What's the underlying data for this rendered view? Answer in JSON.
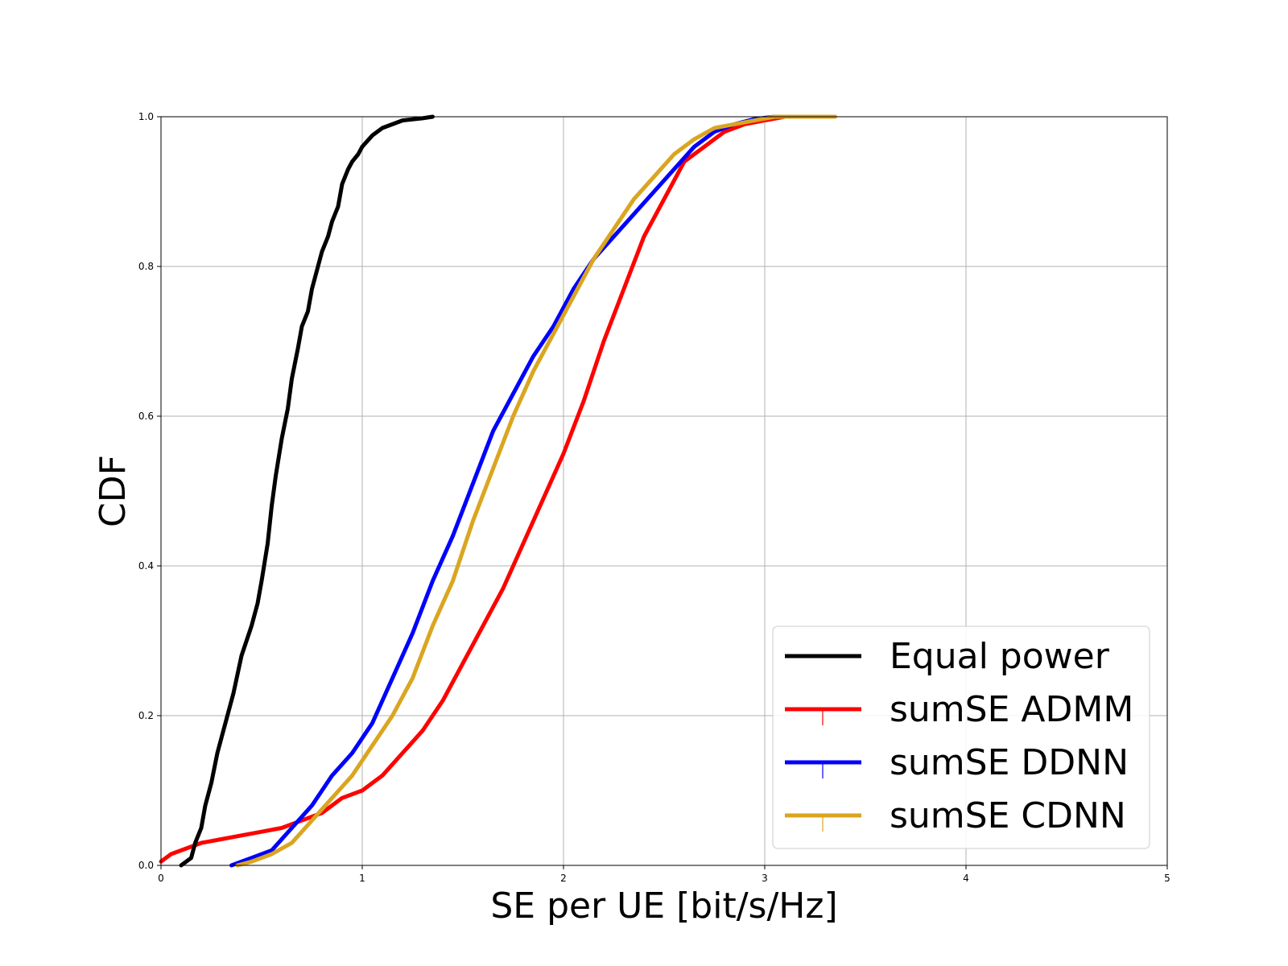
{
  "chart_data": {
    "type": "line",
    "title": "",
    "xlabel": "SE per UE [bit/s/Hz]",
    "ylabel": "CDF",
    "xlim": [
      0,
      5
    ],
    "ylim": [
      0,
      1
    ],
    "xticks": [
      0,
      1,
      2,
      3,
      4,
      5
    ],
    "yticks": [
      0.0,
      0.2,
      0.4,
      0.6,
      0.8,
      1.0
    ],
    "xtick_labels": [
      "0",
      "1",
      "2",
      "3",
      "4",
      "5"
    ],
    "ytick_labels": [
      "0.0",
      "0.2",
      "0.4",
      "0.6",
      "0.8",
      "1.0"
    ],
    "grid": true,
    "legend_position": "bottom-right",
    "series": [
      {
        "name": "Equal power",
        "color": "#000000",
        "x": [
          0.1,
          0.15,
          0.17,
          0.2,
          0.22,
          0.25,
          0.28,
          0.3,
          0.33,
          0.36,
          0.4,
          0.45,
          0.48,
          0.5,
          0.53,
          0.55,
          0.57,
          0.6,
          0.63,
          0.65,
          0.68,
          0.7,
          0.73,
          0.75,
          0.78,
          0.8,
          0.83,
          0.85,
          0.88,
          0.9,
          0.93,
          0.95,
          0.98,
          1.0,
          1.05,
          1.1,
          1.2,
          1.3,
          1.35
        ],
        "y": [
          0.0,
          0.01,
          0.03,
          0.05,
          0.08,
          0.11,
          0.15,
          0.17,
          0.2,
          0.23,
          0.28,
          0.32,
          0.35,
          0.38,
          0.43,
          0.48,
          0.52,
          0.57,
          0.61,
          0.65,
          0.69,
          0.72,
          0.74,
          0.77,
          0.8,
          0.82,
          0.84,
          0.86,
          0.88,
          0.91,
          0.93,
          0.94,
          0.95,
          0.96,
          0.975,
          0.985,
          0.995,
          0.998,
          1.0
        ]
      },
      {
        "name": "sumSE ADMM",
        "color": "#ff0000",
        "x": [
          0.0,
          0.05,
          0.1,
          0.2,
          0.3,
          0.4,
          0.5,
          0.6,
          0.7,
          0.8,
          0.9,
          1.0,
          1.1,
          1.2,
          1.3,
          1.4,
          1.5,
          1.6,
          1.7,
          1.8,
          1.9,
          2.0,
          2.1,
          2.2,
          2.3,
          2.4,
          2.5,
          2.6,
          2.7,
          2.8,
          2.9,
          3.0,
          3.1,
          3.3
        ],
        "y": [
          0.005,
          0.015,
          0.02,
          0.03,
          0.035,
          0.04,
          0.045,
          0.05,
          0.06,
          0.07,
          0.09,
          0.1,
          0.12,
          0.15,
          0.18,
          0.22,
          0.27,
          0.32,
          0.37,
          0.43,
          0.49,
          0.55,
          0.62,
          0.7,
          0.77,
          0.84,
          0.89,
          0.94,
          0.96,
          0.98,
          0.99,
          0.995,
          1.0,
          1.0
        ]
      },
      {
        "name": "sumSE DDNN",
        "color": "#0000ff",
        "x": [
          0.35,
          0.45,
          0.55,
          0.65,
          0.75,
          0.85,
          0.95,
          1.05,
          1.15,
          1.25,
          1.35,
          1.45,
          1.55,
          1.65,
          1.75,
          1.85,
          1.95,
          2.05,
          2.15,
          2.25,
          2.35,
          2.45,
          2.55,
          2.65,
          2.75,
          2.85,
          2.95,
          3.05,
          3.2
        ],
        "y": [
          0.0,
          0.01,
          0.02,
          0.05,
          0.08,
          0.12,
          0.15,
          0.19,
          0.25,
          0.31,
          0.38,
          0.44,
          0.51,
          0.58,
          0.63,
          0.68,
          0.72,
          0.77,
          0.81,
          0.84,
          0.87,
          0.9,
          0.93,
          0.96,
          0.98,
          0.99,
          0.997,
          1.0,
          1.0
        ]
      },
      {
        "name": "sumSE CDNN",
        "color": "#daa520",
        "x": [
          0.38,
          0.45,
          0.55,
          0.65,
          0.75,
          0.85,
          0.95,
          1.05,
          1.15,
          1.25,
          1.35,
          1.45,
          1.55,
          1.65,
          1.75,
          1.85,
          1.95,
          2.05,
          2.15,
          2.25,
          2.35,
          2.45,
          2.55,
          2.65,
          2.75,
          2.85,
          2.95,
          3.05,
          3.2,
          3.35
        ],
        "y": [
          0.0,
          0.005,
          0.015,
          0.03,
          0.06,
          0.09,
          0.12,
          0.16,
          0.2,
          0.25,
          0.32,
          0.38,
          0.46,
          0.53,
          0.6,
          0.66,
          0.71,
          0.76,
          0.81,
          0.85,
          0.89,
          0.92,
          0.95,
          0.97,
          0.985,
          0.99,
          0.995,
          1.0,
          1.0,
          1.0
        ]
      }
    ]
  }
}
